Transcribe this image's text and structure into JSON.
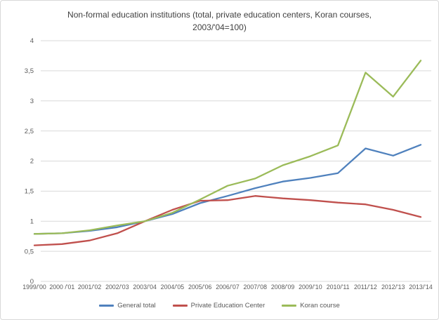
{
  "window": {
    "background": "#ffffff",
    "border_color": "#d8d8d8"
  },
  "chart_data": {
    "type": "line",
    "title": "Non-formal education institutions (total, private education centers, Koran courses, 2003/'04=100)",
    "categories": [
      "1999/'00",
      "2000 /'01",
      "2001/'02",
      "2002/'03",
      "2003/'04",
      "2004/'05",
      "2005/'06",
      "2006/'07",
      "2007/'08",
      "2008/'09",
      "2009/'10",
      "2010/'11",
      "2011/'12",
      "2012/'13",
      "2013/'14"
    ],
    "series": [
      {
        "name": "General total",
        "color": "#4f81bd",
        "values": [
          0.79,
          0.8,
          0.84,
          0.9,
          1.0,
          1.12,
          1.3,
          1.42,
          1.55,
          1.66,
          1.72,
          1.8,
          2.21,
          2.09,
          2.27
        ]
      },
      {
        "name": "Private Education Center",
        "color": "#c0504d",
        "values": [
          0.6,
          0.62,
          0.68,
          0.8,
          1.0,
          1.19,
          1.34,
          1.35,
          1.42,
          1.38,
          1.35,
          1.31,
          1.28,
          1.19,
          1.07
        ]
      },
      {
        "name": "Koran course",
        "color": "#9bbb59",
        "values": [
          0.79,
          0.8,
          0.85,
          0.93,
          1.0,
          1.14,
          1.36,
          1.59,
          1.71,
          1.93,
          2.08,
          2.26,
          3.47,
          3.07,
          3.67
        ]
      }
    ],
    "xlabel": "",
    "ylabel": "",
    "ylim": [
      0,
      4
    ],
    "ytick_step": 0.5,
    "ytick_labels": [
      "0",
      "0,5",
      "1",
      "1,5",
      "2",
      "2,5",
      "3",
      "3,5",
      "4"
    ],
    "grid": true,
    "gridline_color": "#d9d9d9",
    "axis_text_color": "#595959",
    "title_color": "#3f3f3f",
    "legend_position": "bottom"
  }
}
